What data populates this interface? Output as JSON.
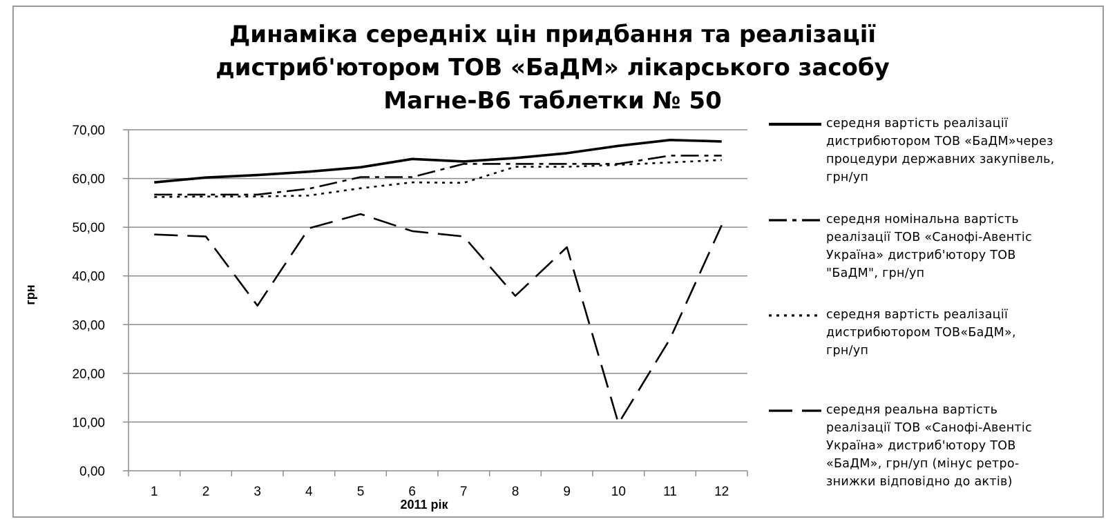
{
  "chart_data": {
    "type": "line",
    "title_lines": [
      "Динаміка середніх цін придбання та реалізації",
      "дистриб'ютором ТОВ «БаДМ» лікарського засобу",
      "Магне-В6 таблетки № 50"
    ],
    "xlabel": "2011 рік",
    "ylabel": "грн",
    "ylim": [
      0,
      70
    ],
    "yticks": [
      "0,00",
      "10,00",
      "20,00",
      "30,00",
      "40,00",
      "50,00",
      "60,00",
      "70,00"
    ],
    "categories": [
      "1",
      "2",
      "3",
      "4",
      "5",
      "6",
      "7",
      "8",
      "9",
      "10",
      "11",
      "12"
    ],
    "grid": true,
    "legend_position": "right",
    "series": [
      {
        "name": "середня вартість реалізації дистрибютором ТОВ «БаДМ»через процедури державних закупівель, грн/уп",
        "legend_lines": [
          "середня вартість реалізації",
          "дистрибютором ТОВ «БаДМ»через",
          "процедури державних закупівель,",
          "грн/уп"
        ],
        "style": "solid",
        "values": [
          59.2,
          60.2,
          60.7,
          61.4,
          62.3,
          64.0,
          63.5,
          64.2,
          65.2,
          66.7,
          67.9,
          67.6
        ]
      },
      {
        "name": "середня номінальна вартість реалізації ТОВ «Санофі-Авентіс Україна» дистриб'ютору ТОВ \"БаДМ\", грн/уп",
        "legend_lines": [
          "середня номінальна вартість",
          "реалізації ТОВ «Санофі-Авентіс",
          "Україна» дистриб'ютору ТОВ",
          "\"БаДМ\", грн/уп"
        ],
        "style": "dashdot",
        "values": [
          56.7,
          56.7,
          56.7,
          57.9,
          60.3,
          60.3,
          63.0,
          63.0,
          63.0,
          63.0,
          64.7,
          64.7
        ]
      },
      {
        "name": "середня вартість реалізації дистрибютором ТОВ«БаДМ», грн/уп",
        "legend_lines": [
          "середня вартість реалізації",
          "дистрибютором ТОВ«БаДМ»,",
          "грн/уп"
        ],
        "style": "dotted",
        "values": [
          56.2,
          56.3,
          56.3,
          56.5,
          58.0,
          59.2,
          59.1,
          62.4,
          62.4,
          62.8,
          63.3,
          63.8
        ]
      },
      {
        "name": "середня реальна вартість реалізації ТОВ «Санофі-Авентіс Україна» дистриб'ютору ТОВ «БаДМ», грн/уп (мінус ретро-знижки відповідно до актів)",
        "legend_lines": [
          "середня реальна вартість",
          "реалізації ТОВ «Санофі-Авентіс",
          "Україна» дистриб'ютору ТОВ",
          "«БаДМ», грн/уп (мінус ретро-",
          "знижки відповідно до актів)"
        ],
        "style": "longdash",
        "values": [
          48.5,
          48.1,
          33.9,
          49.8,
          52.7,
          49.2,
          48.1,
          35.9,
          45.9,
          9.7,
          27.1,
          50.4
        ]
      }
    ]
  }
}
